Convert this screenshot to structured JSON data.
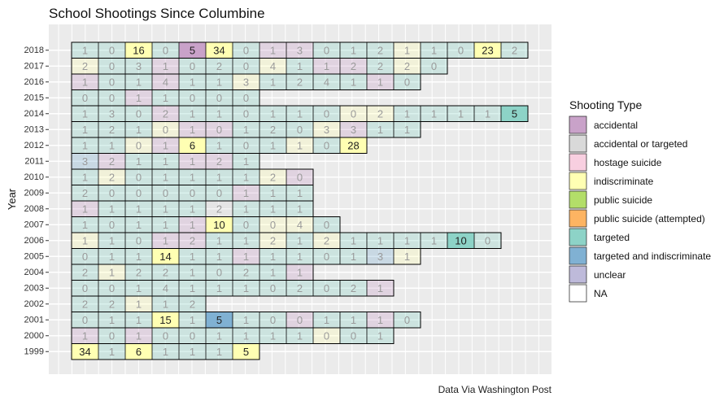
{
  "chart_data": {
    "type": "heatmap",
    "title": "School Shootings Since Columbine",
    "ylabel": "Year",
    "xlabel": "",
    "caption": "Data Via Washington Post",
    "legend_title": "Shooting Type",
    "legend_position": "right",
    "grid": true,
    "years": [
      "2018",
      "2017",
      "2016",
      "2015",
      "2014",
      "2013",
      "2012",
      "2011",
      "2010",
      "2009",
      "2008",
      "2007",
      "2006",
      "2005",
      "2004",
      "2003",
      "2002",
      "2001",
      "2000",
      "1999"
    ],
    "types": [
      {
        "key": "accidental",
        "label": "accidental",
        "color": "#C9A2C9"
      },
      {
        "key": "accidental or targeted",
        "label": "accidental or targeted",
        "color": "#D9D9D9"
      },
      {
        "key": "hostage suicide",
        "label": "hostage suicide",
        "color": "#F8CFE0"
      },
      {
        "key": "indiscriminate",
        "label": "indiscriminate",
        "color": "#FFFFB3"
      },
      {
        "key": "public suicide",
        "label": "public suicide",
        "color": "#B3DE69"
      },
      {
        "key": "public suicide (attempted)",
        "label": "public suicide (attempted)",
        "color": "#FDB462"
      },
      {
        "key": "targeted",
        "label": "targeted",
        "color": "#8DD3C7"
      },
      {
        "key": "targeted and indiscriminate",
        "label": "targeted and indiscriminate",
        "color": "#80B1D3"
      },
      {
        "key": "unclear",
        "label": "unclear",
        "color": "#BEBADA"
      },
      {
        "key": "NA",
        "label": "NA",
        "color": "#FFFFFF"
      }
    ],
    "rows": [
      {
        "year": "2018",
        "cells": [
          [
            1,
            "t"
          ],
          [
            0,
            "t"
          ],
          [
            16,
            "i"
          ],
          [
            0,
            "t"
          ],
          [
            5,
            "a"
          ],
          [
            34,
            "i"
          ],
          [
            0,
            "t"
          ],
          [
            1,
            "a"
          ],
          [
            3,
            "a"
          ],
          [
            0,
            "t"
          ],
          [
            1,
            "t"
          ],
          [
            2,
            "t"
          ],
          [
            1,
            "i"
          ],
          [
            1,
            "t"
          ],
          [
            0,
            "t"
          ],
          [
            23,
            "i"
          ],
          [
            2,
            "t"
          ]
        ]
      },
      {
        "year": "2017",
        "cells": [
          [
            2,
            "i"
          ],
          [
            0,
            "t"
          ],
          [
            3,
            "t"
          ],
          [
            1,
            "a"
          ],
          [
            0,
            "t"
          ],
          [
            2,
            "t"
          ],
          [
            0,
            "t"
          ],
          [
            4,
            "i"
          ],
          [
            1,
            "t"
          ],
          [
            1,
            "a"
          ],
          [
            2,
            "a"
          ],
          [
            2,
            "t"
          ],
          [
            2,
            "i"
          ],
          [
            0,
            "t"
          ]
        ]
      },
      {
        "year": "2016",
        "cells": [
          [
            1,
            "a"
          ],
          [
            0,
            "t"
          ],
          [
            1,
            "t"
          ],
          [
            4,
            "a"
          ],
          [
            1,
            "t"
          ],
          [
            1,
            "t"
          ],
          [
            3,
            "i"
          ],
          [
            1,
            "t"
          ],
          [
            2,
            "t"
          ],
          [
            4,
            "t"
          ],
          [
            1,
            "t"
          ],
          [
            1,
            "a"
          ],
          [
            0,
            "t"
          ]
        ]
      },
      {
        "year": "2015",
        "cells": [
          [
            0,
            "t"
          ],
          [
            0,
            "t"
          ],
          [
            1,
            "a"
          ],
          [
            1,
            "t"
          ],
          [
            0,
            "t"
          ],
          [
            0,
            "t"
          ],
          [
            0,
            "t"
          ]
        ]
      },
      {
        "year": "2014",
        "cells": [
          [
            1,
            "t"
          ],
          [
            3,
            "t"
          ],
          [
            0,
            "t"
          ],
          [
            2,
            "a"
          ],
          [
            1,
            "t"
          ],
          [
            1,
            "t"
          ],
          [
            0,
            "t"
          ],
          [
            1,
            "t"
          ],
          [
            1,
            "t"
          ],
          [
            0,
            "t"
          ],
          [
            0,
            "i"
          ],
          [
            2,
            "i"
          ],
          [
            1,
            "t"
          ],
          [
            1,
            "t"
          ],
          [
            1,
            "t"
          ],
          [
            1,
            "t"
          ],
          [
            5,
            "t"
          ]
        ]
      },
      {
        "year": "2013",
        "cells": [
          [
            1,
            "t"
          ],
          [
            2,
            "t"
          ],
          [
            1,
            "t"
          ],
          [
            0,
            "i"
          ],
          [
            1,
            "a"
          ],
          [
            0,
            "a"
          ],
          [
            1,
            "t"
          ],
          [
            2,
            "t"
          ],
          [
            0,
            "t"
          ],
          [
            3,
            "i"
          ],
          [
            3,
            "a"
          ],
          [
            1,
            "t"
          ],
          [
            1,
            "t"
          ]
        ]
      },
      {
        "year": "2012",
        "cells": [
          [
            1,
            "t"
          ],
          [
            1,
            "t"
          ],
          [
            0,
            "i"
          ],
          [
            1,
            "a"
          ],
          [
            6,
            "i"
          ],
          [
            1,
            "t"
          ],
          [
            0,
            "t"
          ],
          [
            1,
            "t"
          ],
          [
            1,
            "i"
          ],
          [
            0,
            "t"
          ],
          [
            28,
            "i"
          ]
        ]
      },
      {
        "year": "2011",
        "cells": [
          [
            3,
            "b"
          ],
          [
            2,
            "a"
          ],
          [
            1,
            "t"
          ],
          [
            1,
            "t"
          ],
          [
            1,
            "a"
          ],
          [
            2,
            "a"
          ],
          [
            1,
            "t"
          ]
        ]
      },
      {
        "year": "2010",
        "cells": [
          [
            1,
            "t"
          ],
          [
            2,
            "i"
          ],
          [
            0,
            "t"
          ],
          [
            1,
            "t"
          ],
          [
            1,
            "t"
          ],
          [
            1,
            "t"
          ],
          [
            1,
            "t"
          ],
          [
            2,
            "i"
          ],
          [
            0,
            "a"
          ]
        ]
      },
      {
        "year": "2009",
        "cells": [
          [
            2,
            "t"
          ],
          [
            0,
            "t"
          ],
          [
            0,
            "t"
          ],
          [
            0,
            "t"
          ],
          [
            0,
            "t"
          ],
          [
            0,
            "t"
          ],
          [
            1,
            "a"
          ],
          [
            1,
            "t"
          ],
          [
            1,
            "t"
          ]
        ]
      },
      {
        "year": "2008",
        "cells": [
          [
            1,
            "a"
          ],
          [
            1,
            "t"
          ],
          [
            1,
            "t"
          ],
          [
            1,
            "t"
          ],
          [
            1,
            "t"
          ],
          [
            2,
            "g"
          ],
          [
            1,
            "t"
          ],
          [
            1,
            "t"
          ],
          [
            1,
            "t"
          ]
        ]
      },
      {
        "year": "2007",
        "cells": [
          [
            1,
            "t"
          ],
          [
            0,
            "t"
          ],
          [
            1,
            "t"
          ],
          [
            1,
            "t"
          ],
          [
            1,
            "a"
          ],
          [
            10,
            "i"
          ],
          [
            0,
            "t"
          ],
          [
            0,
            "i"
          ],
          [
            4,
            "i"
          ],
          [
            0,
            "t"
          ]
        ]
      },
      {
        "year": "2006",
        "cells": [
          [
            1,
            "i"
          ],
          [
            1,
            "t"
          ],
          [
            0,
            "t"
          ],
          [
            1,
            "a"
          ],
          [
            2,
            "a"
          ],
          [
            1,
            "t"
          ],
          [
            1,
            "t"
          ],
          [
            2,
            "i"
          ],
          [
            1,
            "t"
          ],
          [
            2,
            "i"
          ],
          [
            1,
            "t"
          ],
          [
            1,
            "t"
          ],
          [
            1,
            "t"
          ],
          [
            1,
            "t"
          ],
          [
            10,
            "t"
          ],
          [
            0,
            "t"
          ]
        ]
      },
      {
        "year": "2005",
        "cells": [
          [
            0,
            "t"
          ],
          [
            1,
            "t"
          ],
          [
            1,
            "t"
          ],
          [
            14,
            "i"
          ],
          [
            1,
            "t"
          ],
          [
            1,
            "t"
          ],
          [
            1,
            "a"
          ],
          [
            1,
            "t"
          ],
          [
            1,
            "t"
          ],
          [
            0,
            "t"
          ],
          [
            1,
            "t"
          ],
          [
            3,
            "b"
          ],
          [
            1,
            "i"
          ]
        ]
      },
      {
        "year": "2004",
        "cells": [
          [
            2,
            "t"
          ],
          [
            1,
            "i"
          ],
          [
            2,
            "t"
          ],
          [
            2,
            "t"
          ],
          [
            1,
            "t"
          ],
          [
            0,
            "t"
          ],
          [
            2,
            "t"
          ],
          [
            1,
            "t"
          ],
          [
            1,
            "a"
          ]
        ]
      },
      {
        "year": "2003",
        "cells": [
          [
            0,
            "t"
          ],
          [
            0,
            "t"
          ],
          [
            1,
            "t"
          ],
          [
            4,
            "t"
          ],
          [
            1,
            "t"
          ],
          [
            1,
            "t"
          ],
          [
            1,
            "t"
          ],
          [
            0,
            "t"
          ],
          [
            2,
            "t"
          ],
          [
            0,
            "t"
          ],
          [
            2,
            "t"
          ],
          [
            1,
            "a"
          ]
        ]
      },
      {
        "year": "2002",
        "cells": [
          [
            2,
            "t"
          ],
          [
            2,
            "t"
          ],
          [
            1,
            "i"
          ],
          [
            1,
            "t"
          ],
          [
            2,
            "t"
          ]
        ]
      },
      {
        "year": "2001",
        "cells": [
          [
            0,
            "t"
          ],
          [
            1,
            "t"
          ],
          [
            1,
            "t"
          ],
          [
            15,
            "i"
          ],
          [
            1,
            "t"
          ],
          [
            5,
            "b"
          ],
          [
            1,
            "t"
          ],
          [
            0,
            "t"
          ],
          [
            0,
            "a"
          ],
          [
            1,
            "t"
          ],
          [
            1,
            "t"
          ],
          [
            1,
            "a"
          ],
          [
            0,
            "t"
          ]
        ]
      },
      {
        "year": "2000",
        "cells": [
          [
            1,
            "a"
          ],
          [
            0,
            "t"
          ],
          [
            1,
            "a"
          ],
          [
            0,
            "t"
          ],
          [
            0,
            "t"
          ],
          [
            1,
            "t"
          ],
          [
            1,
            "t"
          ],
          [
            1,
            "t"
          ],
          [
            1,
            "t"
          ],
          [
            0,
            "i"
          ],
          [
            0,
            "t"
          ],
          [
            1,
            "t"
          ]
        ]
      },
      {
        "year": "1999",
        "cells": [
          [
            34,
            "i"
          ],
          [
            1,
            "t"
          ],
          [
            6,
            "i"
          ],
          [
            1,
            "t"
          ],
          [
            1,
            "t"
          ],
          [
            1,
            "t"
          ],
          [
            5,
            "i"
          ]
        ]
      }
    ]
  }
}
